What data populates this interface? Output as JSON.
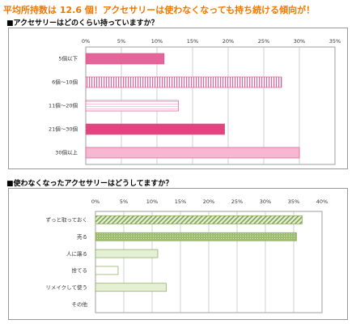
{
  "headline": "平均所持数は 12.6 個！アクセサリーは使わなくなっても持ち続ける傾向が！",
  "chart_data": [
    {
      "type": "bar",
      "orientation": "horizontal",
      "title": "■アクセサリーはどのくらい持っていますか？",
      "categories": [
        "5個以下",
        "6個～10個",
        "11個～20個",
        "21個～30個",
        "30個以上"
      ],
      "values": [
        11.0,
        27.5,
        13.0,
        19.5,
        30.0
      ],
      "xlim": [
        0,
        35
      ],
      "ticks": [
        "0%",
        "5%",
        "10%",
        "15%",
        "20%",
        "25%",
        "30%",
        "35%"
      ],
      "grid": true,
      "bar_styles": [
        "solid",
        "vertical-stripes",
        "horizontal-stripes",
        "solid-dark",
        "light"
      ],
      "colors": {
        "base": "#e5649a",
        "dark": "#e0457f",
        "light": "#f7b7d2",
        "border": "#d85a8c"
      }
    },
    {
      "type": "bar",
      "orientation": "horizontal",
      "title": "■使わなくなったアクセサリーはどうしてますか？",
      "categories": [
        "ずっと取っておく",
        "売る",
        "人に譲る",
        "捨てる",
        "リメイクして使う",
        "その他"
      ],
      "values": [
        36.5,
        35.5,
        11.0,
        4.0,
        12.5,
        0
      ],
      "xlim": [
        0,
        40
      ],
      "ticks": [
        "0%",
        "5%",
        "10%",
        "15%",
        "20%",
        "25%",
        "30%",
        "35%",
        "40%"
      ],
      "grid": true,
      "bar_styles": [
        "diagonal",
        "dots",
        "light",
        "plain",
        "fill",
        "none"
      ],
      "colors": {
        "base": "#9fbf6e",
        "dark": "#7ea24e",
        "light": "#e4efd3",
        "border": "#86a85a"
      }
    }
  ]
}
